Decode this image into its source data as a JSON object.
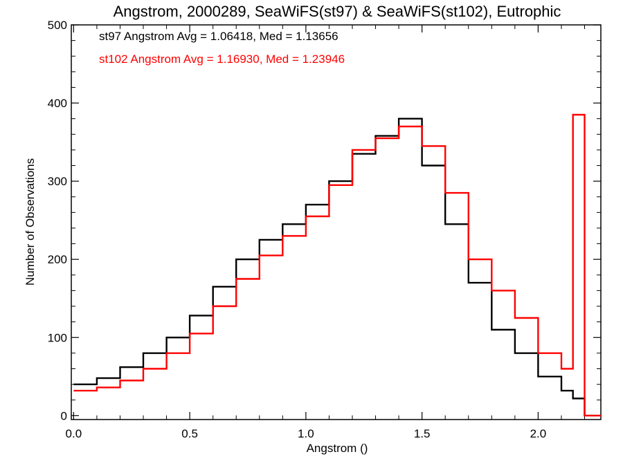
{
  "chart_data": {
    "type": "line",
    "title": "Angstrom, 2000289, SeaWiFS(st97) & SeaWiFS(st102), Eutrophic",
    "xlabel": "Angstrom ()",
    "ylabel": "Number of Observations",
    "xlim": [
      -0.01,
      2.27
    ],
    "ylim": [
      -5,
      500
    ],
    "x_ticks": [
      {
        "value": 0.0,
        "label": "0.0"
      },
      {
        "value": 0.5,
        "label": "0.5"
      },
      {
        "value": 1.0,
        "label": "1.0"
      },
      {
        "value": 1.5,
        "label": "1.5"
      },
      {
        "value": 2.0,
        "label": "2.0"
      }
    ],
    "y_ticks": [
      {
        "value": 0,
        "label": "0"
      },
      {
        "value": 100,
        "label": "100"
      },
      {
        "value": 200,
        "label": "200"
      },
      {
        "value": 300,
        "label": "300"
      },
      {
        "value": 400,
        "label": "400"
      },
      {
        "value": 500,
        "label": "500"
      }
    ],
    "grid": false,
    "legend_placement": "top-left",
    "bin_width": 0.1,
    "series": [
      {
        "name": "st97",
        "color": "#000000",
        "legend_text": "st97 Angstrom Avg = 1.06418, Med = 1.13656",
        "x": [
          0.0,
          0.1,
          0.2,
          0.3,
          0.4,
          0.5,
          0.6,
          0.7,
          0.8,
          0.9,
          1.0,
          1.1,
          1.2,
          1.3,
          1.4,
          1.5,
          1.6,
          1.7,
          1.8,
          1.9,
          2.0,
          2.1,
          2.15,
          2.2
        ],
        "values": [
          40,
          48,
          62,
          80,
          100,
          128,
          165,
          200,
          225,
          245,
          270,
          300,
          335,
          358,
          380,
          320,
          245,
          170,
          110,
          80,
          50,
          32,
          22,
          0
        ]
      },
      {
        "name": "st102",
        "color": "#ff0000",
        "legend_text": "st102 Angstrom Avg = 1.16930, Med = 1.23946",
        "x": [
          0.0,
          0.1,
          0.2,
          0.3,
          0.4,
          0.5,
          0.6,
          0.7,
          0.8,
          0.9,
          1.0,
          1.1,
          1.2,
          1.3,
          1.4,
          1.5,
          1.6,
          1.7,
          1.8,
          1.9,
          2.0,
          2.1,
          2.15,
          2.2
        ],
        "values": [
          32,
          36,
          45,
          60,
          80,
          105,
          140,
          175,
          205,
          230,
          255,
          295,
          340,
          355,
          370,
          345,
          285,
          200,
          160,
          125,
          80,
          60,
          385,
          0
        ]
      }
    ]
  }
}
